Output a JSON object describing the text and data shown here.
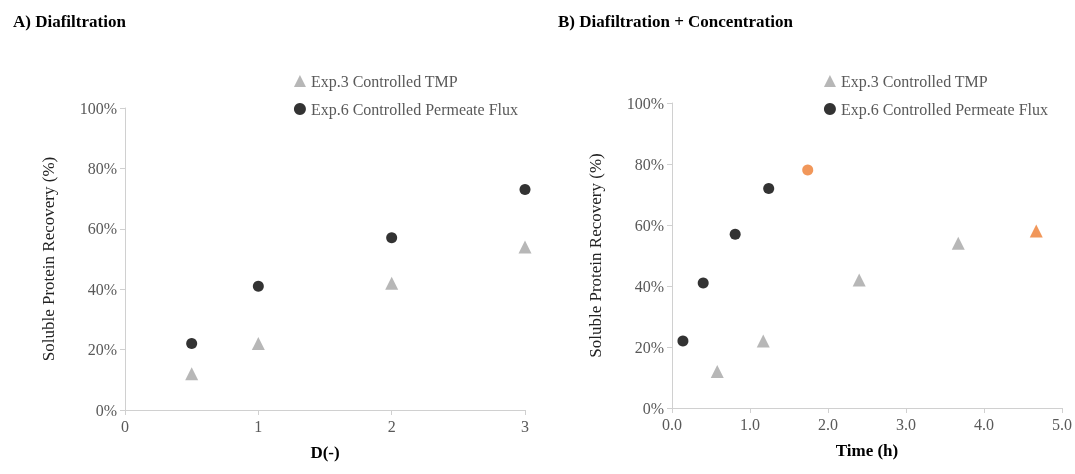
{
  "chart_data": [
    {
      "type": "scatter",
      "title": "A) Diafiltration",
      "xlabel": "D(-)",
      "ylabel": "Soluble Protein Recovery (%)",
      "legend": "top right",
      "grid": false,
      "xlim": [
        0,
        3
      ],
      "xticks": [
        0,
        1,
        2,
        3
      ],
      "ylim": [
        0,
        100
      ],
      "yticks": [
        {
          "value": 0,
          "label": "0%"
        },
        {
          "value": 20,
          "label": "20%"
        },
        {
          "value": 40,
          "label": "40%"
        },
        {
          "value": 60,
          "label": "60%"
        },
        {
          "value": 80,
          "label": "80%"
        },
        {
          "value": 100,
          "label": "100%"
        }
      ],
      "series": [
        {
          "name": "Exp.3 Controlled TMP",
          "color": "#a5a5a5",
          "marker": "triangle",
          "x": [
            0.5,
            1,
            2,
            3
          ],
          "values": [
            12,
            22,
            42,
            54
          ]
        },
        {
          "name": "Exp.6 Controlled Permeate Flux",
          "color": "#000000",
          "marker": "circle",
          "x": [
            0.5,
            1,
            2,
            3
          ],
          "values": [
            22,
            41,
            57,
            73
          ]
        }
      ]
    },
    {
      "type": "scatter",
      "title": "B) Diafiltration + Concentration",
      "xlabel": "Time (h)",
      "ylabel": "Soluble Protein Recovery (%)",
      "legend": "top right",
      "grid": false,
      "xlim": [
        0,
        5
      ],
      "xticks": [
        {
          "value": 0,
          "label": "0.0"
        },
        {
          "value": 1,
          "label": "1.0"
        },
        {
          "value": 2,
          "label": "2.0"
        },
        {
          "value": 3,
          "label": "3.0"
        },
        {
          "value": 4,
          "label": "4.0"
        },
        {
          "value": 5,
          "label": "5.0"
        }
      ],
      "ylim": [
        0,
        100
      ],
      "yticks": [
        {
          "value": 0,
          "label": "0%"
        },
        {
          "value": 20,
          "label": "20%"
        },
        {
          "value": 40,
          "label": "40%"
        },
        {
          "value": 60,
          "label": "60%"
        },
        {
          "value": 80,
          "label": "80%"
        },
        {
          "value": 100,
          "label": "100%"
        }
      ],
      "series": [
        {
          "name": "Exp.3 Controlled TMP",
          "color": "#a5a5a5",
          "marker": "triangle",
          "x": [
            0.58,
            1.17,
            2.4,
            3.67,
            4.67
          ],
          "values": [
            12,
            22,
            42,
            54,
            58
          ],
          "colors": [
            "#a5a5a5",
            "#a5a5a5",
            "#a5a5a5",
            "#a5a5a5",
            "#ed7d31"
          ]
        },
        {
          "name": "Exp.6 Controlled Permeate Flux",
          "color": "#000000",
          "marker": "circle",
          "x": [
            0.14,
            0.4,
            0.81,
            1.24,
            1.74
          ],
          "values": [
            22,
            41,
            57,
            72,
            78
          ],
          "colors": [
            "#000000",
            "#000000",
            "#000000",
            "#000000",
            "#ed7d31"
          ]
        }
      ]
    }
  ]
}
